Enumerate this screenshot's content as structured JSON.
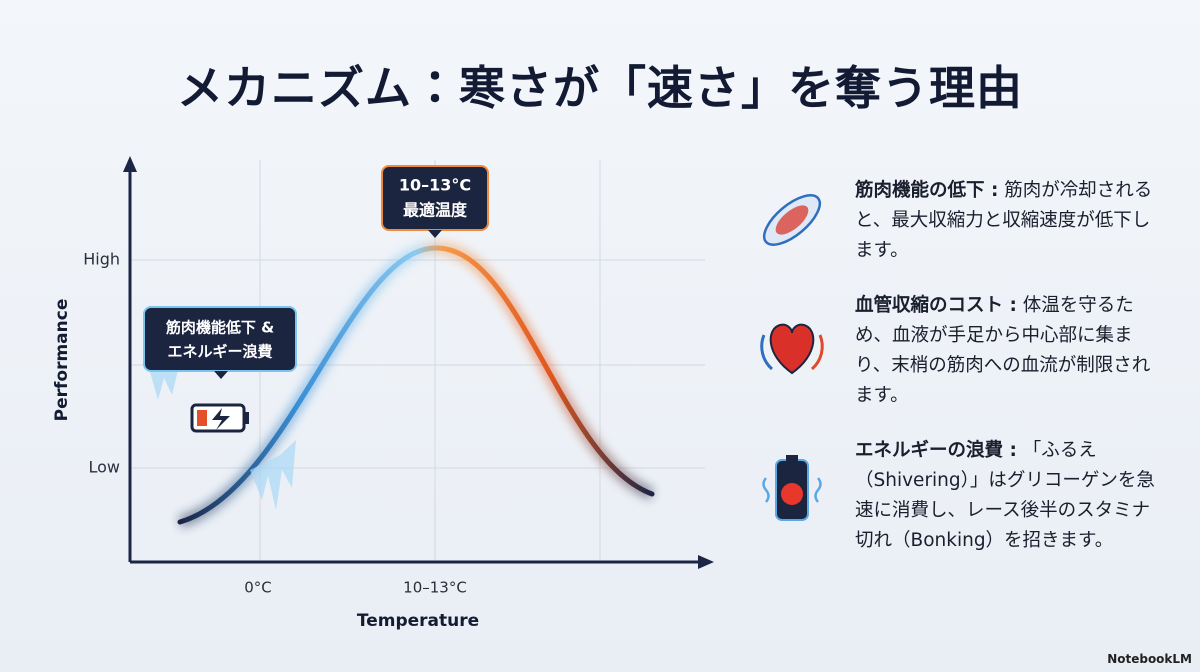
{
  "title": "メカニズム：寒さが「速さ」を奪う理由",
  "chart": {
    "y_axis_label": "Performance",
    "x_axis_label": "Temperature",
    "y_labels": [
      "High",
      "Low"
    ],
    "x_labels": [
      "0°C",
      "10–13°C"
    ],
    "peak_callout": {
      "line1": "10–13°C",
      "line2": "最適温度"
    },
    "cold_callout": {
      "line1": "筋肉機能低下 &",
      "line2": "エネルギー浪費"
    }
  },
  "items": [
    {
      "heading": "筋肉機能の低下 :",
      "text": "筋肉が冷却されると、最大収縮力と収縮速度が低下します。"
    },
    {
      "heading": "血管収縮のコスト :",
      "text": "体温を守るため、血液が手足から中心部に集まり、末梢の筋肉への血流が制限されます。"
    },
    {
      "heading": "エネルギーの浪費 :",
      "text": "「ふるえ（Shivering）」はグリコーゲンを急速に消費し、レース後半のスタミナ切れ（Bonking）を招きます。"
    }
  ],
  "footer": "NotebookLM"
}
